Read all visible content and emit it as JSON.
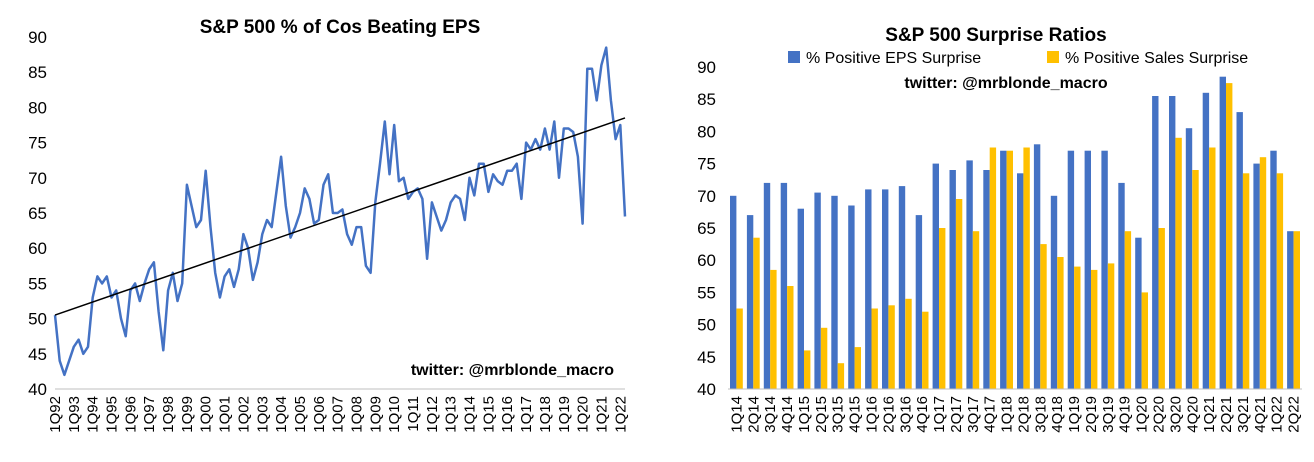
{
  "chart_data": [
    {
      "type": "line",
      "title": "S&P 500 % of Cos Beating EPS",
      "annotation": "twitter: @mrblonde_macro",
      "ylim": [
        40,
        90
      ],
      "yticks": [
        40,
        45,
        50,
        55,
        60,
        65,
        70,
        75,
        80,
        85,
        90
      ],
      "xtick_labels": [
        "1Q92",
        "1Q93",
        "1Q94",
        "1Q95",
        "1Q96",
        "1Q97",
        "1Q98",
        "1Q99",
        "1Q00",
        "1Q01",
        "1Q02",
        "1Q03",
        "1Q04",
        "1Q05",
        "1Q06",
        "1Q07",
        "1Q08",
        "1Q09",
        "1Q10",
        "1Q11",
        "1Q12",
        "1Q13",
        "1Q14",
        "1Q15",
        "1Q16",
        "1Q17",
        "1Q18",
        "1Q19",
        "1Q20",
        "1Q21",
        "1Q22"
      ],
      "x_start": "1Q92",
      "x_end": "1Q22",
      "series": [
        {
          "color": "#4472C4",
          "values": [
            50.5,
            44,
            42,
            44,
            46,
            47,
            45,
            46,
            53,
            56,
            55,
            56,
            53,
            54,
            50,
            47.5,
            54,
            55,
            52.5,
            55,
            57,
            58,
            51,
            45.5,
            54,
            56.5,
            52.5,
            55,
            69,
            66,
            63,
            64,
            71,
            63,
            56.5,
            53,
            56,
            57,
            54.5,
            57,
            62,
            60,
            55.5,
            58,
            62,
            64,
            63,
            68,
            73,
            66,
            61.5,
            63,
            65,
            68.5,
            67,
            63.5,
            64,
            69,
            70.5,
            65,
            65,
            65.5,
            62,
            60.5,
            63,
            63,
            57.5,
            56.5,
            66.5,
            72,
            78,
            70.5,
            77.5,
            69.5,
            70,
            67,
            68,
            68.5,
            67,
            58.5,
            66.5,
            64.5,
            62.5,
            64,
            66.5,
            67.5,
            67,
            64,
            70,
            67.5,
            72,
            72,
            68,
            70.5,
            69.5,
            69,
            71,
            71,
            72,
            67,
            75,
            74,
            75.5,
            74,
            77,
            74,
            78,
            70,
            77,
            77,
            76.5,
            73,
            63.5,
            85.5,
            85.5,
            81,
            86,
            88.5,
            81,
            75.5,
            77.5,
            64.5
          ]
        },
        {
          "name": "trend",
          "color": "#000000",
          "values": [
            50.5,
            78.5
          ]
        }
      ]
    },
    {
      "type": "bar",
      "title": "S&P 500 Surprise Ratios",
      "annotation": "twitter: @mrblonde_macro",
      "ylim": [
        40,
        90
      ],
      "yticks": [
        40,
        45,
        50,
        55,
        60,
        65,
        70,
        75,
        80,
        85,
        90
      ],
      "legend_position": "top",
      "categories": [
        "1Q14",
        "2Q14",
        "3Q14",
        "4Q14",
        "1Q15",
        "2Q15",
        "3Q15",
        "4Q15",
        "1Q16",
        "2Q16",
        "3Q16",
        "4Q16",
        "1Q17",
        "2Q17",
        "3Q17",
        "4Q17",
        "1Q18",
        "2Q18",
        "3Q18",
        "4Q18",
        "1Q19",
        "2Q19",
        "3Q19",
        "4Q19",
        "1Q20",
        "2Q20",
        "3Q20",
        "4Q20",
        "1Q21",
        "2Q21",
        "3Q21",
        "4Q21",
        "1Q22",
        "2Q22"
      ],
      "series": [
        {
          "name": "% Positive EPS Surprise",
          "color": "#4472C4",
          "values": [
            70,
            67,
            72,
            72,
            68,
            70.5,
            70,
            68.5,
            71,
            71,
            71.5,
            67,
            75,
            74,
            75.5,
            74,
            77,
            73.5,
            78,
            70,
            77,
            77,
            77,
            72,
            63.5,
            85.5,
            85.5,
            80.5,
            86,
            88.5,
            83,
            75,
            77,
            64.5
          ]
        },
        {
          "name": "% Positive Sales Surprise",
          "color": "#FFC000",
          "values": [
            52.5,
            63.5,
            58.5,
            56,
            46,
            49.5,
            44,
            46.5,
            52.5,
            53,
            54,
            52,
            65,
            69.5,
            64.5,
            77.5,
            77,
            77.5,
            62.5,
            60.5,
            59,
            58.5,
            59.5,
            64.5,
            55,
            65,
            79,
            74,
            77.5,
            87.5,
            73.5,
            76,
            73.5,
            64.5
          ]
        }
      ]
    }
  ]
}
